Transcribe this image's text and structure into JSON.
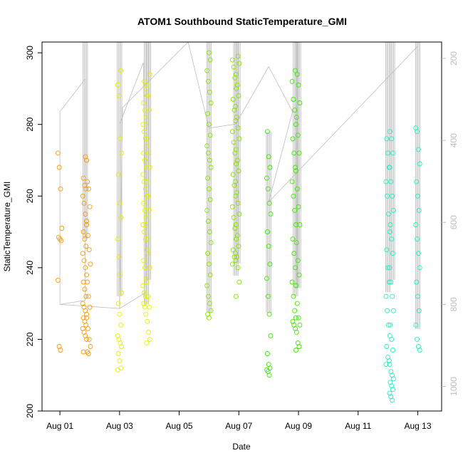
{
  "chart_data": {
    "type": "scatter",
    "title": "ATOM1 Southbound StaticTemperature_GMI",
    "xlabel": "Date",
    "ylabel": "StaticTemperature_GMI",
    "xlim_days": [
      -0.6,
      12.8
    ],
    "ylim": [
      200,
      303
    ],
    "right_axis_lim": [
      1060,
      160
    ],
    "x_ticks": [
      {
        "day": 0,
        "label": "Aug 01"
      },
      {
        "day": 2,
        "label": "Aug 03"
      },
      {
        "day": 4,
        "label": "Aug 05"
      },
      {
        "day": 6,
        "label": "Aug 07"
      },
      {
        "day": 8,
        "label": "Aug 09"
      },
      {
        "day": 10,
        "label": "Aug 11"
      },
      {
        "day": 12,
        "label": "Aug 13"
      }
    ],
    "y_ticks": [
      200,
      220,
      240,
      260,
      280,
      300
    ],
    "right_ticks": [
      200,
      400,
      600,
      800,
      1000
    ],
    "grid": false,
    "legend": "none",
    "colors": {
      "aug01": "#f39c12",
      "aug03": "#e5ee00",
      "aug06": "#8be200",
      "aug08": "#3fe700",
      "aug12": "#27ecc0",
      "pressure_line": "#bdbdbd"
    },
    "series": [
      {
        "day": 0.0,
        "color": "#f39c12",
        "values": [
          272,
          268,
          262,
          251,
          248.5,
          248,
          247.5,
          236.5,
          218,
          217
        ]
      },
      {
        "day": 0.83,
        "color": "#f39c12",
        "values": [
          271,
          270,
          265,
          263,
          262,
          260,
          258,
          255,
          253,
          250,
          248,
          246,
          244,
          242,
          240,
          238,
          236,
          234,
          232,
          230,
          229,
          228,
          227,
          226,
          225,
          224,
          223,
          222,
          221,
          220,
          216.5
        ]
      },
      {
        "day": 0.96,
        "color": "#f39c12",
        "values": [
          264,
          262,
          257,
          252,
          249,
          245,
          241,
          236,
          232,
          229,
          226,
          223,
          220,
          218,
          216.5,
          216
        ]
      },
      {
        "day": 2.0,
        "color": "#e5ee00",
        "values": [
          295,
          291,
          288,
          276,
          272,
          266,
          258,
          254,
          248,
          243,
          238,
          233,
          230,
          227,
          224,
          221,
          220,
          219,
          218,
          216,
          214,
          212,
          211.5
        ]
      },
      {
        "day": 2.85,
        "color": "#e5ee00",
        "values": [
          292,
          290,
          288,
          286,
          284,
          282,
          280,
          278,
          276,
          274,
          272,
          270,
          268,
          266,
          264,
          262,
          260,
          258,
          256,
          254,
          252,
          250,
          248,
          245,
          242,
          240,
          237,
          235,
          233,
          232,
          231,
          230,
          229
        ]
      },
      {
        "day": 2.95,
        "color": "#e5ee00",
        "values": [
          294,
          291,
          288,
          284,
          280,
          276,
          272,
          268,
          264,
          260,
          256,
          252,
          248,
          244,
          240,
          236,
          232,
          229,
          227,
          225,
          222,
          220,
          219
        ]
      },
      {
        "day": 5.0,
        "color": "#8be200",
        "values": [
          300,
          298,
          295,
          292,
          289,
          286,
          283,
          280,
          277,
          274,
          272,
          270,
          268,
          265,
          262,
          259,
          256,
          253,
          250,
          247,
          244,
          241,
          238,
          235,
          232,
          230,
          228,
          227,
          226
        ]
      },
      {
        "day": 5.85,
        "color": "#8be200",
        "values": [
          298,
          296,
          293,
          290,
          287,
          284,
          281,
          278,
          275,
          272,
          269,
          266,
          263,
          260,
          257,
          254,
          251,
          248,
          245,
          243,
          242,
          241
        ]
      },
      {
        "day": 5.95,
        "color": "#8be200",
        "values": [
          299,
          297,
          294,
          291,
          288,
          285,
          282,
          279,
          276,
          273,
          270,
          267,
          264,
          261,
          258,
          255,
          252,
          249,
          246,
          244,
          243,
          240,
          236,
          232
        ]
      },
      {
        "day": 7.0,
        "color": "#3fe700",
        "values": [
          278,
          271,
          268,
          265,
          262,
          258,
          255,
          250,
          246,
          241,
          237,
          232,
          227,
          221,
          216,
          213,
          212,
          211.5,
          211,
          210
        ]
      },
      {
        "day": 7.85,
        "color": "#3fe700",
        "values": [
          295,
          292,
          287,
          284,
          280,
          276,
          272,
          268,
          264,
          260,
          256,
          252,
          248,
          244,
          240,
          236,
          232,
          228,
          226,
          225,
          224,
          223
        ]
      },
      {
        "day": 7.98,
        "color": "#3fe700",
        "values": [
          294,
          291,
          286,
          282,
          277,
          272,
          267,
          262,
          257,
          252,
          247,
          242,
          238,
          235,
          230,
          226,
          224,
          222,
          219,
          218,
          217
        ]
      },
      {
        "day": 11.0,
        "color": "#27ecc0",
        "values": [
          278,
          276,
          272,
          268,
          264,
          260,
          255,
          250,
          245,
          240,
          236,
          232,
          228,
          224,
          221,
          218,
          215,
          214,
          213
        ]
      },
      {
        "day": 11.12,
        "color": "#27ecc0",
        "values": [
          276,
          272,
          268,
          264,
          260,
          256,
          252,
          248,
          244,
          240,
          236,
          232,
          228,
          224,
          220,
          217,
          213,
          211,
          210,
          209,
          208,
          207,
          206,
          205,
          204,
          203
        ]
      },
      {
        "day": 12.0,
        "color": "#27ecc0",
        "values": [
          279,
          278,
          273,
          269,
          264,
          260,
          256,
          252,
          248,
          244,
          240,
          236,
          232,
          228,
          224,
          220,
          218,
          217
        ]
      }
    ],
    "pressure_columns": [
      {
        "day": 0.85,
        "top": 160,
        "bottom": 640
      },
      {
        "day": 2.0,
        "top": 160,
        "bottom": 780
      },
      {
        "day": 2.9,
        "top": 160,
        "bottom": 800
      },
      {
        "day": 2.97,
        "top": 160,
        "bottom": 740
      },
      {
        "day": 5.0,
        "top": 160,
        "bottom": 820
      },
      {
        "day": 5.9,
        "top": 160,
        "bottom": 730
      },
      {
        "day": 5.97,
        "top": 160,
        "bottom": 700
      },
      {
        "day": 7.0,
        "top": 380,
        "bottom": 820
      },
      {
        "day": 7.9,
        "top": 160,
        "bottom": 780
      },
      {
        "day": 8.0,
        "top": 160,
        "bottom": 760
      },
      {
        "day": 11.0,
        "top": 160,
        "bottom": 770
      },
      {
        "day": 11.15,
        "top": 160,
        "bottom": 740
      },
      {
        "day": 12.0,
        "top": 160,
        "bottom": 860
      }
    ],
    "pressure_path": [
      {
        "day": 0.0,
        "p": 800
      },
      {
        "day": 0.0,
        "p": 330
      },
      {
        "day": 0.85,
        "p": 250
      },
      {
        "day": 0.85,
        "p": 790
      },
      {
        "day": 0.0,
        "p": 800
      },
      {
        "day": 2.0,
        "p": 810
      },
      {
        "day": 2.0,
        "p": 360
      },
      {
        "day": 2.8,
        "p": 210
      },
      {
        "day": 2.9,
        "p": 770
      },
      {
        "day": 2.0,
        "p": 810
      },
      {
        "day": 2.1,
        "p": 320
      },
      {
        "day": 4.3,
        "p": 160
      },
      {
        "day": 5.0,
        "p": 370
      },
      {
        "day": 5.9,
        "p": 360
      },
      {
        "day": 7.0,
        "p": 220
      },
      {
        "day": 7.8,
        "p": 330
      },
      {
        "day": 7.0,
        "p": 550
      },
      {
        "day": 12.0,
        "p": 170
      }
    ]
  }
}
